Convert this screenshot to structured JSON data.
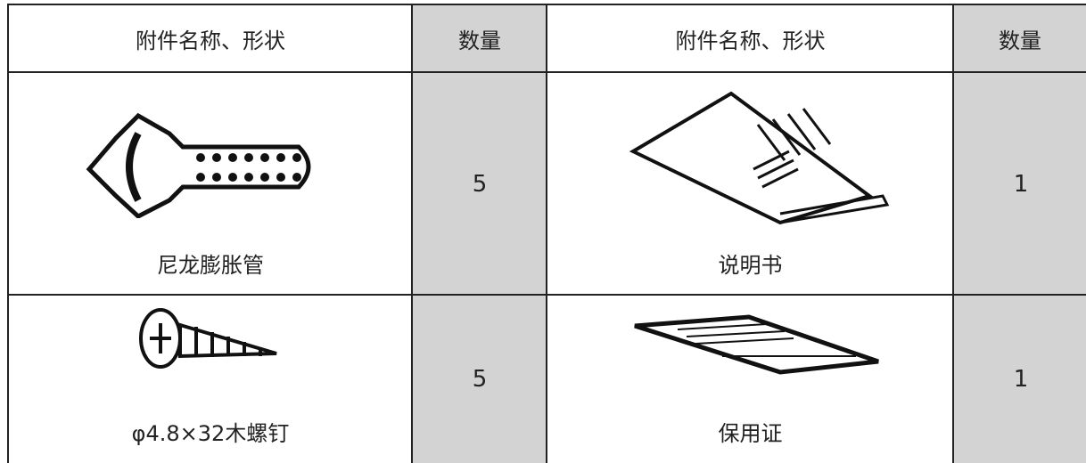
{
  "table": {
    "header": [
      "附件名称、形状",
      "数量",
      "附件名称、形状",
      "数量"
    ],
    "rows": [
      [
        "尼龙膨胀管",
        5,
        "说明书",
        1
      ],
      [
        "φ4.8×32木螺钉",
        5,
        "保用证",
        1
      ]
    ]
  }
}
